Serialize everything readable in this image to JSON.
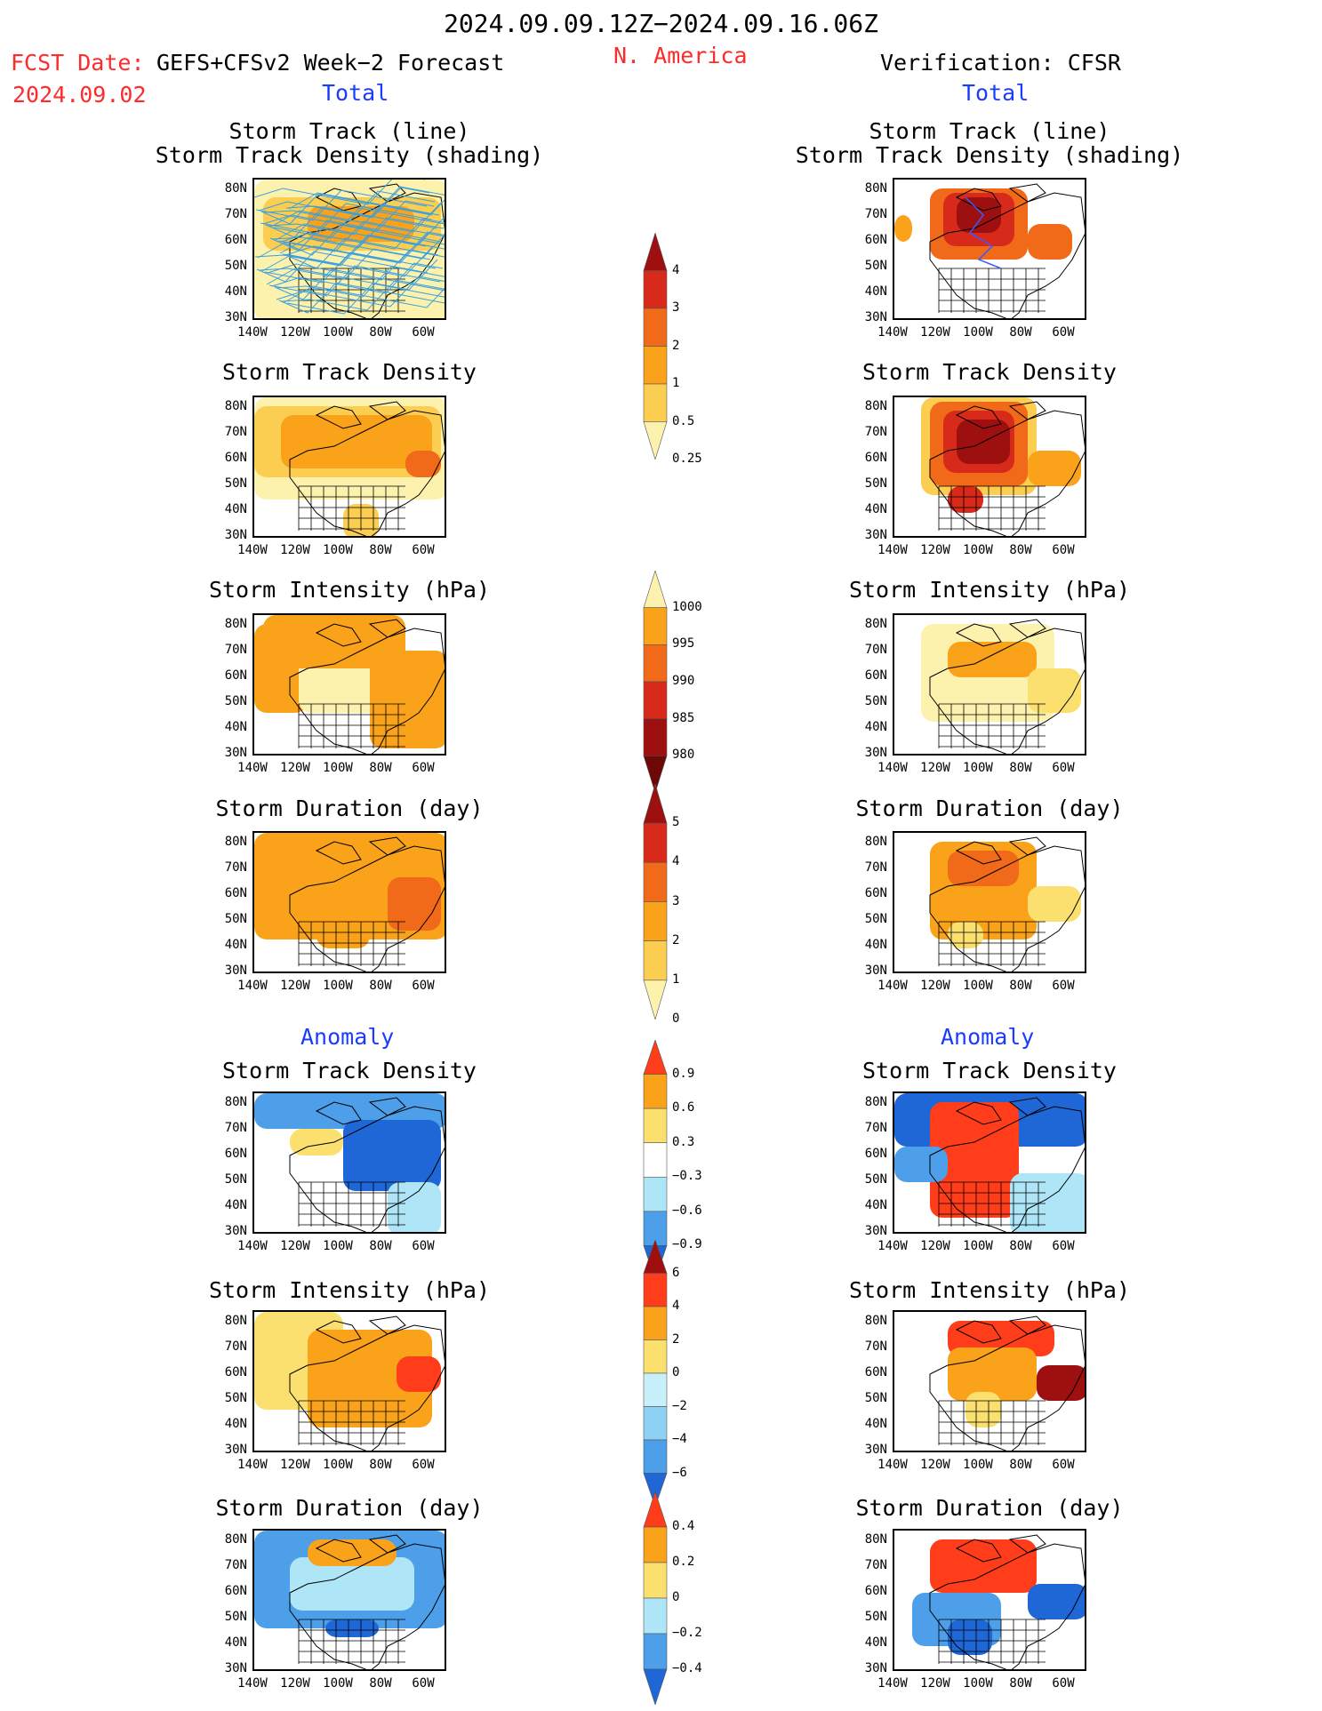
{
  "header": {
    "period": "2024.09.09.12Z−2024.09.16.06Z",
    "fcst_label": "FCST Date:",
    "fcst_model": "GEFS+CFSv2 Week−2 Forecast",
    "fcst_date": "2024.09.02",
    "region": "N. America",
    "verification": "Verification: CFSR"
  },
  "sections": {
    "total_left": "Total",
    "total_right": "Total",
    "anomaly_left": "Anomaly",
    "anomaly_right": "Anomaly"
  },
  "axes": {
    "lat_ticks": [
      "80N",
      "70N",
      "60N",
      "50N",
      "40N",
      "30N"
    ],
    "lon_ticks": [
      "140W",
      "120W",
      "100W",
      "80W",
      "60W"
    ]
  },
  "panels": [
    {
      "id": "track-line",
      "title1": "Storm Track (line)",
      "title2": "Storm Track Density (shading)"
    },
    {
      "id": "track-density",
      "title1": "Storm Track Density"
    },
    {
      "id": "intensity",
      "title1": "Storm Intensity (hPa)"
    },
    {
      "id": "duration",
      "title1": "Storm Duration (day)"
    },
    {
      "id": "anom-density",
      "title1": "Storm Track Density"
    },
    {
      "id": "anom-intensity",
      "title1": "Storm Intensity (hPa)"
    },
    {
      "id": "anom-duration",
      "title1": "Storm Duration (day)"
    }
  ],
  "colorbars": [
    {
      "id": "density",
      "labels": [
        "4",
        "3",
        "2",
        "1",
        "0.5",
        "0.25"
      ],
      "colors": [
        "#9e0f0f",
        "#d72a1a",
        "#f06a1a",
        "#f9a21a",
        "#fbcd50",
        "#fdf2ad"
      ]
    },
    {
      "id": "intensity",
      "labels": [
        "1000",
        "995",
        "990",
        "985",
        "980"
      ],
      "colors": [
        "#fdf2ad",
        "#f9a21a",
        "#f06a1a",
        "#d72a1a",
        "#9e0f0f",
        "#6e0808"
      ]
    },
    {
      "id": "duration",
      "labels": [
        "5",
        "4",
        "3",
        "2",
        "1",
        "0"
      ],
      "colors": [
        "#9e0f0f",
        "#d72a1a",
        "#f06a1a",
        "#f9a21a",
        "#fbcd50",
        "#fdf2ad"
      ]
    },
    {
      "id": "anom-density",
      "labels": [
        "0.9",
        "0.6",
        "0.3",
        "−0.3",
        "−0.6",
        "−0.9"
      ],
      "colors": [
        "#ff3d1a",
        "#f9a21a",
        "#fbe070",
        "#ffffff",
        "#aee6f8",
        "#4c9fe8",
        "#1f66d6"
      ]
    },
    {
      "id": "anom-intensity",
      "labels": [
        "6",
        "4",
        "2",
        "0",
        "−2",
        "−4",
        "−6"
      ],
      "colors": [
        "#9e0f0f",
        "#ff3d1a",
        "#f9a21a",
        "#fbe070",
        "#c8f0fb",
        "#8fd1f4",
        "#4c9fe8",
        "#1f66d6"
      ]
    },
    {
      "id": "anom-duration",
      "labels": [
        "0.4",
        "0.2",
        "0",
        "−0.2",
        "−0.4"
      ],
      "colors": [
        "#ff3d1a",
        "#f9a21a",
        "#fbe070",
        "#aee6f8",
        "#4c9fe8",
        "#1f66d6"
      ]
    }
  ]
}
